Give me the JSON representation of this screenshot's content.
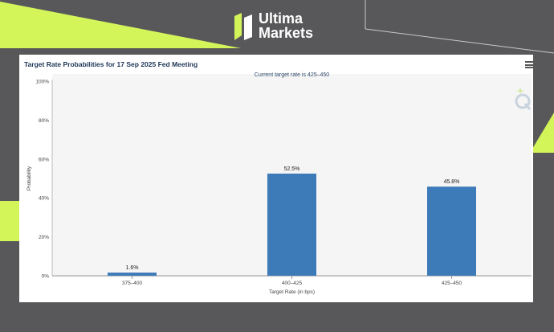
{
  "brand": {
    "line1": "Ultima",
    "line2": "Markets"
  },
  "menu_icon": "hamburger-menu-icon",
  "watermark_icon": "q-logo-icon",
  "colors": {
    "accent": "#d4f55a",
    "bar": "#3d7ab8",
    "background": "#58585a"
  },
  "chart_data": {
    "type": "bar",
    "title": "Target Rate Probabilities for 17 Sep 2025 Fed Meeting",
    "subtitle": "Current target rate is 425–450",
    "xlabel": "Target Rate (in bps)",
    "ylabel": "Probability",
    "categories": [
      "375–400",
      "400–425",
      "425–450"
    ],
    "values": [
      1.6,
      52.5,
      45.8
    ],
    "value_labels": [
      "1.6%",
      "52.5%",
      "45.8%"
    ],
    "ylim": [
      0,
      100
    ],
    "yticks": [
      "0%",
      "20%",
      "40%",
      "60%",
      "80%",
      "100%"
    ],
    "grid": false,
    "legend": "none"
  }
}
